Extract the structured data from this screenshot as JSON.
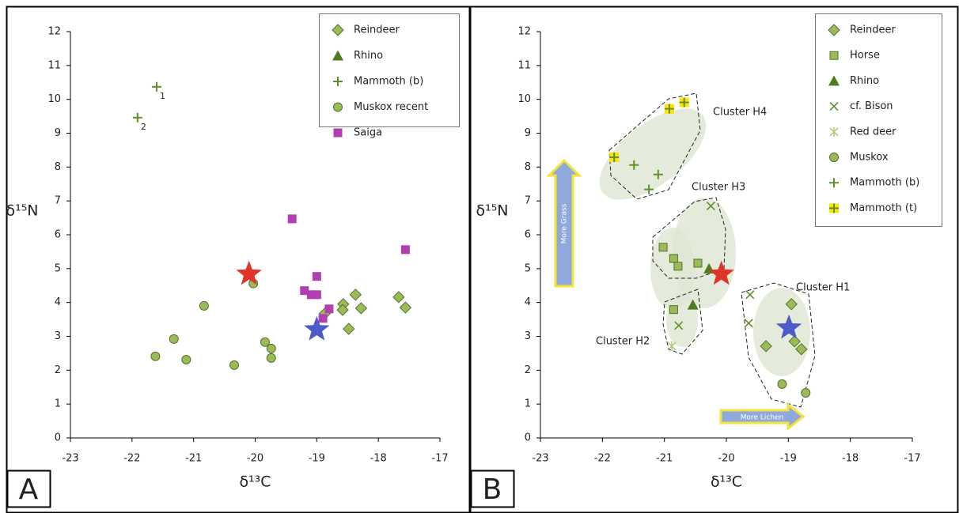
{
  "chart_data": [
    {
      "type": "scatter",
      "panel_label": "A",
      "xlabel": "δ¹³C",
      "ylabel": "δ¹⁵N",
      "xlim": [
        -23,
        -17
      ],
      "ylim": [
        0,
        12
      ],
      "xticks": [
        -23,
        -22,
        -21,
        -20,
        -19,
        -18,
        -17
      ],
      "yticks": [
        0,
        1,
        2,
        3,
        4,
        5,
        6,
        7,
        8,
        9,
        10,
        11,
        12
      ],
      "series": [
        {
          "name": "Reindeer",
          "marker": "diamond",
          "color": "#9bbb59",
          "x": [
            -18.57,
            -18.58,
            -18.37,
            -18.28,
            -18.48,
            -17.67,
            -17.56,
            -18.87
          ],
          "y": [
            3.95,
            3.78,
            4.23,
            3.83,
            3.22,
            4.16,
            3.85,
            3.67
          ]
        },
        {
          "name": "Rhino",
          "marker": "triangle",
          "color": "#4f7b22",
          "x": [],
          "y": []
        },
        {
          "name": "Mammoth (b)",
          "marker": "plus",
          "color": "#5f8f2c",
          "x": [
            -21.6,
            -21.91
          ],
          "y": [
            10.37,
            9.46
          ],
          "point_labels": [
            "1",
            "2"
          ]
        },
        {
          "name": "Muskox recent",
          "marker": "circle",
          "color": "#9bbb59",
          "x": [
            -21.62,
            -21.32,
            -21.12,
            -20.83,
            -20.34,
            -20.03,
            -19.84,
            -19.74,
            -19.74
          ],
          "y": [
            2.41,
            2.92,
            2.31,
            3.9,
            2.15,
            4.56,
            2.83,
            2.64,
            2.36
          ]
        },
        {
          "name": "Saiga",
          "marker": "square",
          "color": "#b040b0",
          "x": [
            -19.4,
            -19.0,
            -19.2,
            -19.09,
            -19.0,
            -18.8,
            -18.9,
            -17.56
          ],
          "y": [
            6.47,
            4.77,
            4.35,
            4.23,
            4.23,
            3.81,
            3.53,
            5.56
          ]
        }
      ],
      "stars": [
        {
          "color": "#e03428",
          "x": -20.1,
          "y": 4.84
        },
        {
          "color": "#4a5cc8",
          "x": -19.0,
          "y": 3.2
        }
      ]
    },
    {
      "type": "scatter",
      "panel_label": "B",
      "xlabel": "δ¹³C",
      "ylabel": "δ¹⁵N",
      "xlim": [
        -23,
        -17
      ],
      "ylim": [
        0,
        12
      ],
      "xticks": [
        -23,
        -22,
        -21,
        -20,
        -19,
        -18,
        -17
      ],
      "yticks": [
        0,
        1,
        2,
        3,
        4,
        5,
        6,
        7,
        8,
        9,
        10,
        11,
        12
      ],
      "series": [
        {
          "name": "Reindeer",
          "marker": "diamond",
          "color": "#9bbb59",
          "x": [
            -18.95,
            -19.36,
            -18.9,
            -18.79
          ],
          "y": [
            3.95,
            2.71,
            2.85,
            2.62
          ]
        },
        {
          "name": "Horse",
          "marker": "square",
          "color": "#9bbb59",
          "x": [
            -21.02,
            -20.85,
            -20.78,
            -20.46,
            -20.85
          ],
          "y": [
            5.63,
            5.3,
            5.07,
            5.16,
            3.79
          ]
        },
        {
          "name": "Rhino",
          "marker": "triangle",
          "color": "#4f7b22",
          "x": [
            -20.28,
            -20.54
          ],
          "y": [
            5.0,
            3.93
          ]
        },
        {
          "name": "cf. Bison",
          "marker": "cross",
          "color": "#5f8f2c",
          "x": [
            -20.25,
            -19.62,
            -19.64,
            -20.77
          ],
          "y": [
            6.85,
            4.23,
            3.39,
            3.32
          ]
        },
        {
          "name": "Red deer",
          "marker": "asterisk",
          "color": "#b5c97e",
          "x": [
            -20.88
          ],
          "y": [
            2.71
          ]
        },
        {
          "name": "Muskox",
          "marker": "circle",
          "color": "#9bbb59",
          "x": [
            -19.1,
            -18.72
          ],
          "y": [
            1.59,
            1.33
          ]
        },
        {
          "name": "Mammoth (b)",
          "marker": "plus",
          "color": "#5f8f2c",
          "x": [
            -21.49,
            -21.1,
            -21.25
          ],
          "y": [
            8.06,
            7.78,
            7.34
          ]
        },
        {
          "name": "Mammoth (t)",
          "marker": "yplus",
          "color": "#ffe400",
          "x": [
            -21.81,
            -20.92,
            -20.68
          ],
          "y": [
            8.29,
            9.72,
            9.91
          ]
        }
      ],
      "stars": [
        {
          "color": "#e03428",
          "x": -20.08,
          "y": 4.84
        },
        {
          "color": "#4a5cc8",
          "x": -18.99,
          "y": 3.25
        }
      ],
      "annotations": [
        "Cluster H4",
        "Cluster H3",
        "Cluster H2",
        "Cluster H1",
        "More Grass",
        "More Lichen"
      ]
    }
  ]
}
